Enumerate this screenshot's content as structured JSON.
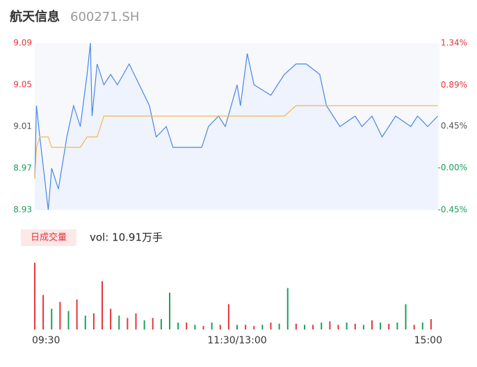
{
  "header": {
    "name": "航天信息",
    "code": "600271.SH"
  },
  "chart_data": [
    {
      "type": "line",
      "xlim": [
        0,
        240
      ],
      "xticks": [
        {
          "value": 0,
          "label": "09:30"
        },
        {
          "value": 120,
          "label": "11:30/13:00"
        },
        {
          "value": 240,
          "label": "15:00"
        }
      ],
      "ylim": [
        8.93,
        9.09
      ],
      "yticks": [
        9.09,
        9.05,
        9.01,
        8.97,
        8.93
      ],
      "ytick_colors": [
        "#e8333a",
        "#e8333a",
        "#555555",
        "#1a9f5a",
        "#1a9f5a"
      ],
      "y2lim": [
        -0.45,
        1.34
      ],
      "y2ticks": [
        {
          "value": 1.34,
          "label": "1.34%"
        },
        {
          "value": 0.89,
          "label": "0.89%"
        },
        {
          "value": 0.45,
          "label": "0.45%"
        },
        {
          "value": 0,
          "label": "-0.00%"
        },
        {
          "value": -0.45,
          "label": "-0.45%"
        }
      ],
      "x": [
        0,
        1,
        3,
        8,
        10,
        14,
        19,
        23,
        27,
        31,
        33,
        34,
        37,
        41,
        45,
        49,
        56,
        68,
        72,
        78,
        82,
        91,
        99,
        103,
        109,
        113,
        120,
        122,
        126,
        130,
        140,
        144,
        148,
        155,
        161,
        169,
        173,
        177,
        181,
        190,
        194,
        200,
        206,
        214,
        223,
        227,
        233,
        239
      ],
      "series": [
        {
          "name": "price",
          "color": "#4a86e8",
          "values": [
            8.96,
            9.03,
            9.0,
            8.93,
            8.97,
            8.95,
            9.0,
            9.03,
            9.01,
            9.06,
            9.09,
            9.02,
            9.07,
            9.05,
            9.06,
            9.05,
            9.07,
            9.03,
            9.0,
            9.01,
            8.99,
            8.99,
            8.99,
            9.01,
            9.02,
            9.01,
            9.05,
            9.03,
            9.08,
            9.05,
            9.04,
            9.05,
            9.06,
            9.07,
            9.07,
            9.06,
            9.03,
            9.02,
            9.01,
            9.02,
            9.01,
            9.02,
            9.0,
            9.02,
            9.01,
            9.02,
            9.01,
            9.02
          ]
        },
        {
          "name": "average",
          "color": "#f5b94a",
          "values": [
            8.96,
            8.99,
            9.0,
            9.0,
            8.99,
            8.99,
            8.99,
            8.99,
            8.99,
            9.0,
            9.0,
            9.0,
            9.0,
            9.02,
            9.02,
            9.02,
            9.02,
            9.02,
            9.02,
            9.02,
            9.02,
            9.02,
            9.02,
            9.02,
            9.02,
            9.02,
            9.02,
            9.02,
            9.02,
            9.02,
            9.02,
            9.02,
            9.02,
            9.03,
            9.03,
            9.03,
            9.03,
            9.03,
            9.03,
            9.03,
            9.03,
            9.03,
            9.03,
            9.03,
            9.03,
            9.03,
            9.03,
            9.03
          ]
        }
      ]
    },
    {
      "type": "bar",
      "legend_label": "日成交量",
      "summary": "vol: 10.91万手",
      "x": [
        0,
        5,
        10,
        15,
        20,
        25,
        30,
        35,
        40,
        45,
        50,
        55,
        60,
        65,
        70,
        75,
        80,
        85,
        90,
        95,
        100,
        105,
        110,
        115,
        120,
        125,
        130,
        135,
        140,
        145,
        150,
        155,
        160,
        165,
        170,
        175,
        180,
        185,
        190,
        195,
        200,
        205,
        210,
        215,
        220,
        225,
        230,
        235
      ],
      "values": [
        2900,
        1500,
        900,
        1200,
        800,
        1300,
        600,
        700,
        2100,
        900,
        600,
        500,
        700,
        400,
        500,
        450,
        1600,
        300,
        300,
        200,
        150,
        300,
        200,
        1100,
        200,
        200,
        150,
        200,
        300,
        250,
        1800,
        250,
        200,
        200,
        300,
        350,
        200,
        300,
        250,
        200,
        400,
        300,
        250,
        300,
        1100,
        200,
        300,
        450
      ],
      "colors": [
        "#e8333a",
        "#e8333a",
        "#1a9f5a",
        "#e8333a",
        "#1a9f5a",
        "#e8333a",
        "#1a9f5a",
        "#e8333a",
        "#e8333a",
        "#e8333a",
        "#1a9f5a",
        "#e8333a",
        "#e8333a",
        "#1a9f5a",
        "#e8333a",
        "#1a9f5a",
        "#1a9f5a",
        "#1a9f5a",
        "#e8333a",
        "#1a9f5a",
        "#e8333a",
        "#1a9f5a",
        "#e8333a",
        "#e8333a",
        "#1a9f5a",
        "#e8333a",
        "#e8333a",
        "#1a9f5a",
        "#e8333a",
        "#1a9f5a",
        "#1a9f5a",
        "#e8333a",
        "#1a9f5a",
        "#e8333a",
        "#1a9f5a",
        "#e8333a",
        "#e8333a",
        "#1a9f5a",
        "#e8333a",
        "#1a9f5a",
        "#e8333a",
        "#1a9f5a",
        "#e8333a",
        "#1a9f5a",
        "#1a9f5a",
        "#e8333a",
        "#1a9f5a",
        "#e8333a"
      ]
    }
  ]
}
